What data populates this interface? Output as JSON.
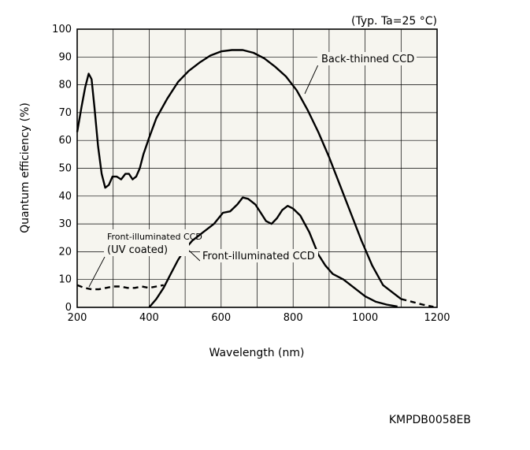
{
  "chart_data": {
    "type": "line",
    "title": "",
    "condition_note": "(Typ. Ta=25 °C)",
    "xlabel": "Wavelength (nm)",
    "ylabel": "Quantum efficiency (%)",
    "xlim": [
      200,
      1200
    ],
    "ylim": [
      0,
      100
    ],
    "x_ticks": [
      200,
      400,
      600,
      800,
      1000,
      1200
    ],
    "y_ticks": [
      0,
      10,
      20,
      30,
      40,
      50,
      60,
      70,
      80,
      90,
      100
    ],
    "grid": true,
    "series": [
      {
        "name": "Back-thinned CCD",
        "style": "solid",
        "points": [
          [
            200,
            63
          ],
          [
            212,
            72
          ],
          [
            222,
            79
          ],
          [
            232,
            84
          ],
          [
            240,
            82
          ],
          [
            248,
            72
          ],
          [
            258,
            58
          ],
          [
            268,
            48
          ],
          [
            278,
            43
          ],
          [
            288,
            44
          ],
          [
            298,
            47
          ],
          [
            310,
            47
          ],
          [
            322,
            46
          ],
          [
            334,
            48
          ],
          [
            344,
            48
          ],
          [
            354,
            46
          ],
          [
            364,
            47
          ],
          [
            374,
            50
          ],
          [
            384,
            55
          ],
          [
            400,
            61
          ],
          [
            420,
            68
          ],
          [
            450,
            75
          ],
          [
            480,
            81
          ],
          [
            510,
            85
          ],
          [
            540,
            88
          ],
          [
            570,
            90.5
          ],
          [
            600,
            92
          ],
          [
            630,
            92.5
          ],
          [
            660,
            92.5
          ],
          [
            690,
            91.5
          ],
          [
            720,
            89.5
          ],
          [
            750,
            86.5
          ],
          [
            780,
            83
          ],
          [
            810,
            78
          ],
          [
            840,
            71
          ],
          [
            870,
            63
          ],
          [
            900,
            54
          ],
          [
            930,
            44
          ],
          [
            960,
            34
          ],
          [
            990,
            24
          ],
          [
            1020,
            15
          ],
          [
            1050,
            8
          ],
          [
            1080,
            5
          ],
          [
            1100,
            3
          ]
        ]
      },
      {
        "name": "Back-thinned CCD (continued)",
        "style": "dashed",
        "points": [
          [
            1100,
            3
          ],
          [
            1130,
            2
          ],
          [
            1160,
            1
          ],
          [
            1190,
            0.2
          ]
        ]
      },
      {
        "name": "Front-illuminated CCD",
        "style": "solid",
        "points": [
          [
            400,
            0
          ],
          [
            420,
            3
          ],
          [
            440,
            7
          ],
          [
            460,
            12
          ],
          [
            480,
            17
          ],
          [
            500,
            21
          ],
          [
            520,
            24
          ],
          [
            550,
            27
          ],
          [
            580,
            30
          ],
          [
            605,
            34
          ],
          [
            625,
            34.5
          ],
          [
            645,
            37
          ],
          [
            660,
            39.5
          ],
          [
            675,
            39
          ],
          [
            695,
            37
          ],
          [
            710,
            34
          ],
          [
            725,
            31
          ],
          [
            740,
            30
          ],
          [
            755,
            32
          ],
          [
            770,
            35
          ],
          [
            785,
            36.5
          ],
          [
            800,
            35.5
          ],
          [
            820,
            33
          ],
          [
            845,
            27
          ],
          [
            870,
            19
          ],
          [
            890,
            15
          ],
          [
            910,
            12
          ],
          [
            940,
            10
          ],
          [
            970,
            7
          ],
          [
            1000,
            4
          ],
          [
            1030,
            2
          ],
          [
            1060,
            1
          ],
          [
            1090,
            0.3
          ]
        ]
      },
      {
        "name": "Front-illuminated CCD (UV coated)",
        "style": "dashed",
        "points": [
          [
            200,
            8
          ],
          [
            220,
            7
          ],
          [
            240,
            6.5
          ],
          [
            260,
            6.5
          ],
          [
            280,
            7
          ],
          [
            300,
            7.5
          ],
          [
            320,
            7.5
          ],
          [
            340,
            7
          ],
          [
            360,
            7
          ],
          [
            380,
            7.5
          ],
          [
            400,
            7
          ],
          [
            420,
            7.5
          ],
          [
            440,
            8
          ]
        ]
      }
    ],
    "annotations": {
      "back_thinned": "Back-thinned CCD",
      "front_illuminated": "Front-illuminated CCD",
      "front_uv_line1": "Front-illuminated CCD",
      "front_uv_line2": "(UV coated)"
    }
  },
  "document_code": "KMPDB0058EB"
}
